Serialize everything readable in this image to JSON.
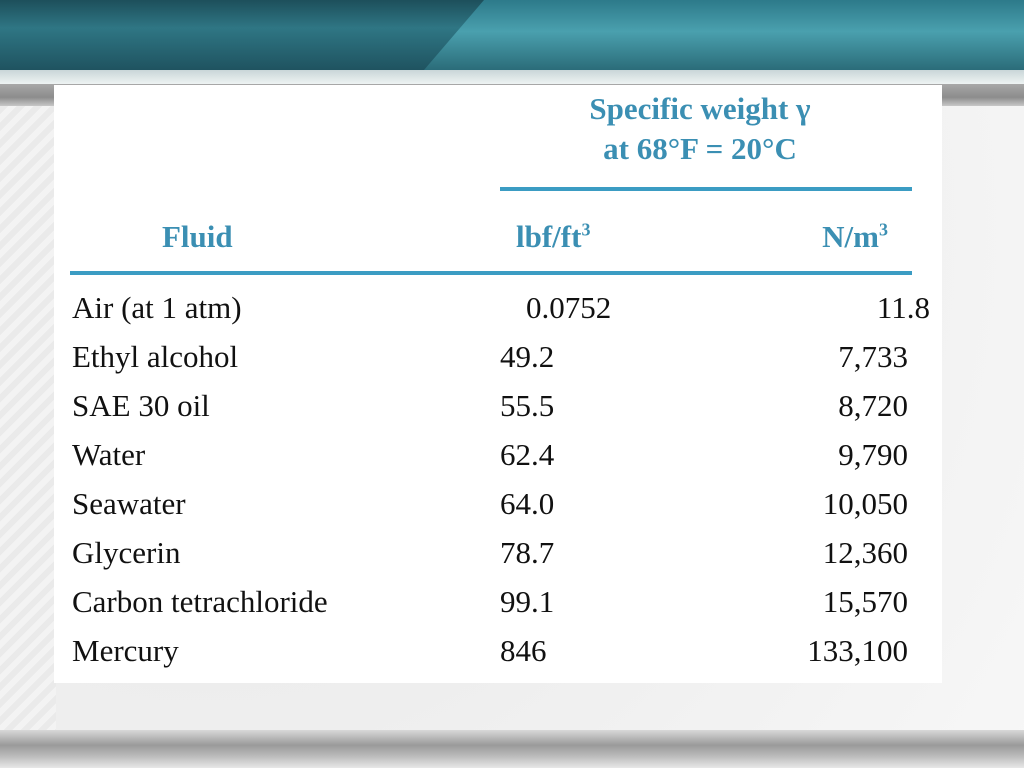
{
  "table": {
    "group_title_line1": "Specific weight γ",
    "group_title_line2": "at 68°F = 20°C",
    "headers": {
      "fluid": "Fluid",
      "lbf": "lbf/ft",
      "lbf_sup": "3",
      "nm": "N/m",
      "nm_sup": "3"
    },
    "rows": [
      {
        "fluid": "Air (at 1 atm)",
        "lbf": "0.0752",
        "nm": "11.8"
      },
      {
        "fluid": "Ethyl alcohol",
        "lbf": "49.2",
        "nm": "7,733"
      },
      {
        "fluid": "SAE 30 oil",
        "lbf": "55.5",
        "nm": "8,720"
      },
      {
        "fluid": "Water",
        "lbf": "62.4",
        "nm": "9,790"
      },
      {
        "fluid": "Seawater",
        "lbf": "64.0",
        "nm": "10,050"
      },
      {
        "fluid": "Glycerin",
        "lbf": "78.7",
        "nm": "12,360"
      },
      {
        "fluid": "Carbon tetrachloride",
        "lbf": "99.1",
        "nm": "15,570"
      },
      {
        "fluid": "Mercury",
        "lbf": "846",
        "nm": "133,100"
      }
    ]
  },
  "colors": {
    "header_blue": "#3b8fb3",
    "rule_blue": "#3b9cc3",
    "band_teal": "#2f7684"
  }
}
